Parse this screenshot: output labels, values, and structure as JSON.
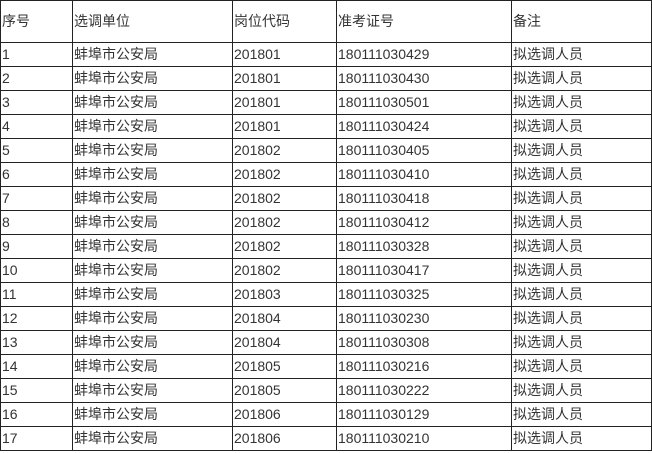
{
  "table": {
    "headers": [
      "序号",
      "选调单位",
      "岗位代码",
      "准考证号",
      "备注"
    ],
    "rows": [
      [
        "1",
        "蚌埠市公安局",
        "201801",
        "180111030429",
        "拟选调人员"
      ],
      [
        "2",
        "蚌埠市公安局",
        "201801",
        "180111030430",
        "拟选调人员"
      ],
      [
        "3",
        "蚌埠市公安局",
        "201801",
        "180111030501",
        "拟选调人员"
      ],
      [
        "4",
        "蚌埠市公安局",
        "201801",
        "180111030424",
        "拟选调人员"
      ],
      [
        "5",
        "蚌埠市公安局",
        "201802",
        "180111030405",
        "拟选调人员"
      ],
      [
        "6",
        "蚌埠市公安局",
        "201802",
        "180111030410",
        "拟选调人员"
      ],
      [
        "7",
        "蚌埠市公安局",
        "201802",
        "180111030418",
        "拟选调人员"
      ],
      [
        "8",
        "蚌埠市公安局",
        "201802",
        "180111030412",
        "拟选调人员"
      ],
      [
        "9",
        "蚌埠市公安局",
        "201802",
        "180111030328",
        "拟选调人员"
      ],
      [
        "10",
        "蚌埠市公安局",
        "201802",
        "180111030417",
        "拟选调人员"
      ],
      [
        "11",
        "蚌埠市公安局",
        "201803",
        "180111030325",
        "拟选调人员"
      ],
      [
        "12",
        "蚌埠市公安局",
        "201804",
        "180111030230",
        "拟选调人员"
      ],
      [
        "13",
        "蚌埠市公安局",
        "201804",
        "180111030308",
        "拟选调人员"
      ],
      [
        "14",
        "蚌埠市公安局",
        "201805",
        "180111030216",
        "拟选调人员"
      ],
      [
        "15",
        "蚌埠市公安局",
        "201805",
        "180111030222",
        "拟选调人员"
      ],
      [
        "16",
        "蚌埠市公安局",
        "201806",
        "180111030129",
        "拟选调人员"
      ],
      [
        "17",
        "蚌埠市公安局",
        "201806",
        "180111030210",
        "拟选调人员"
      ]
    ]
  }
}
